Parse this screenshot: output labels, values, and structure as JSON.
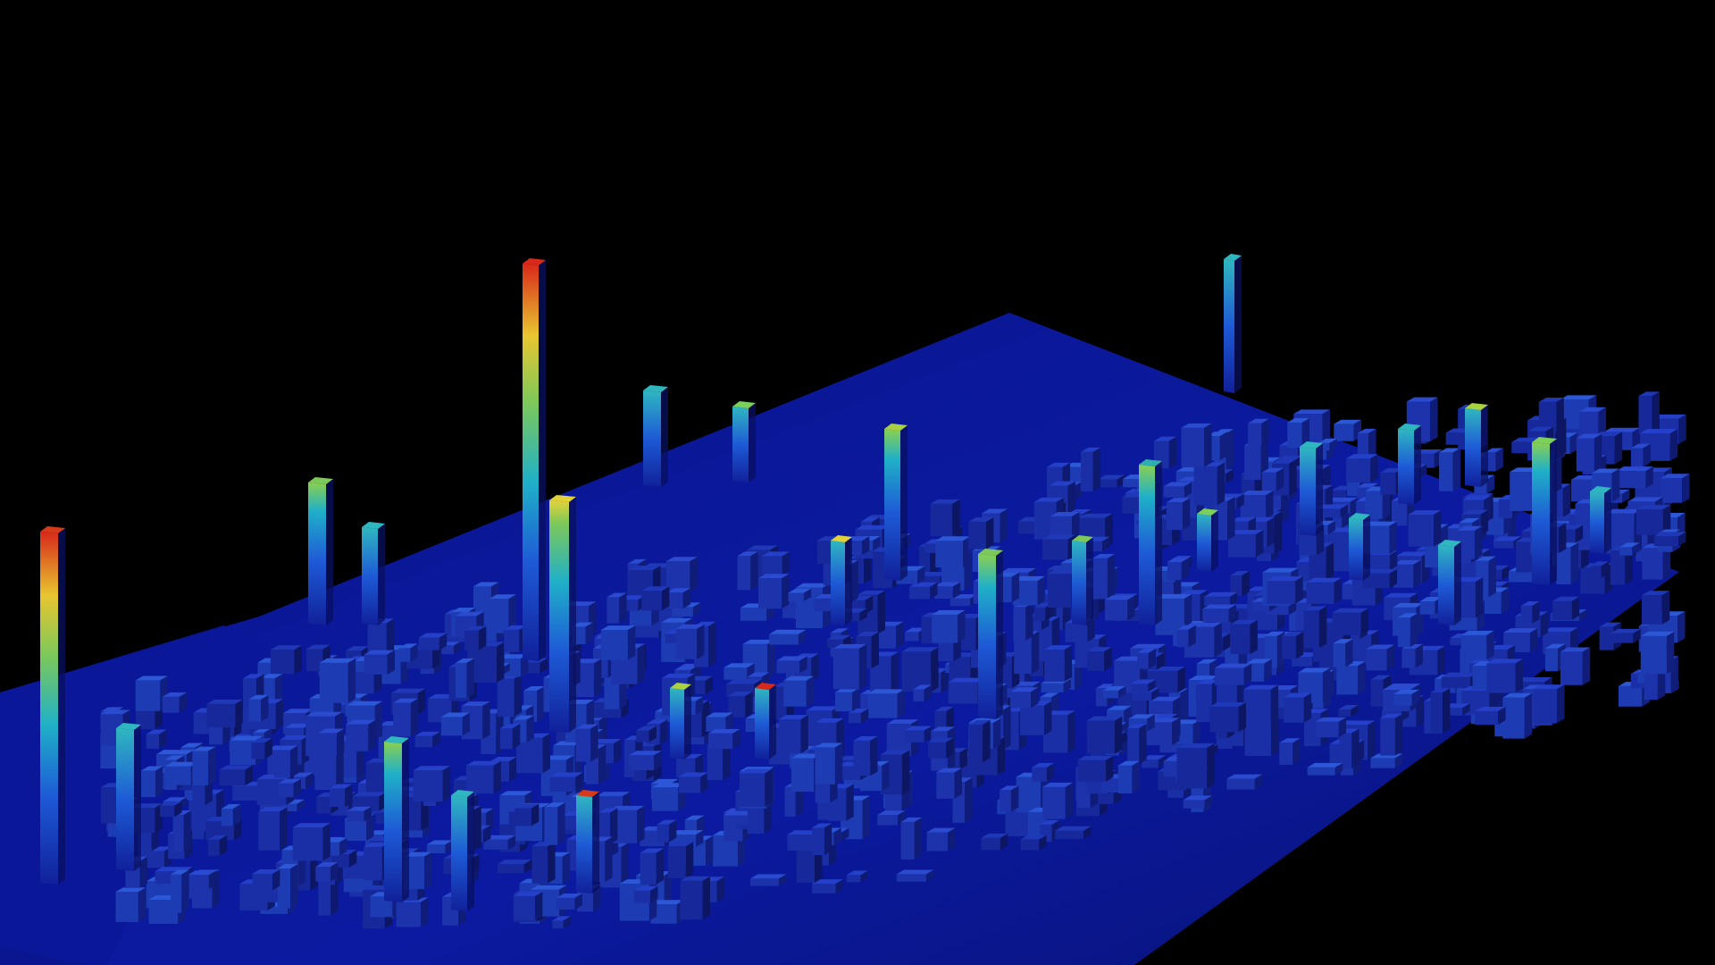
{
  "scene": {
    "description_tag": "3d-height-map-render",
    "colors": {
      "background": "#000000",
      "ground_plane": "#0b1aa0",
      "ground_plane_shadow": "#050c55",
      "ramp_low": "#10209a",
      "ramp_mid_low": "#1e5ad6",
      "ramp_mid": "#1fb0c8",
      "ramp_mid_high": "#7cc85a",
      "ramp_high": "#e8c630",
      "ramp_peak": "#d8281a"
    },
    "tall_bars": [
      {
        "id": "a",
        "level": 1.0,
        "peak_color": "#d63a1a"
      },
      {
        "id": "b",
        "level": 1.0,
        "peak_color": "#d8281a"
      },
      {
        "id": "c",
        "level": 0.72,
        "peak_color": "#e2d23a"
      },
      {
        "id": "d",
        "level": 0.55,
        "peak_color": "#7cc85a"
      },
      {
        "id": "e",
        "level": 0.5,
        "peak_color": "#2fb7c0"
      },
      {
        "id": "f",
        "level": 0.48,
        "peak_color": "#2fb7c0"
      },
      {
        "id": "g",
        "level": 0.48,
        "peak_color": "#2fb7c0"
      },
      {
        "id": "h",
        "level": 0.55,
        "peak_color": "#7ccf5a"
      },
      {
        "id": "i",
        "level": 0.55,
        "peak_color": "#a8d240"
      },
      {
        "id": "j",
        "level": 0.5,
        "peak_color": "#7cc85a"
      },
      {
        "id": "k",
        "level": 0.62,
        "peak_color": "#2fb0b0"
      },
      {
        "id": "l",
        "level": 0.45,
        "peak_color": "#2fb7c0"
      },
      {
        "id": "m",
        "level": 0.45,
        "peak_color": "#2fb7c0"
      },
      {
        "id": "n",
        "level": 0.45,
        "peak_color": "#2fb7c0"
      },
      {
        "id": "o",
        "level": 0.55,
        "peak_color": "#a8d240"
      },
      {
        "id": "p",
        "level": 0.45,
        "peak_color": "#7ccf5a"
      },
      {
        "id": "q",
        "level": 0.45,
        "peak_color": "#2fb7c0"
      },
      {
        "id": "r",
        "level": 0.4,
        "peak_color": "#2fb7c0"
      }
    ]
  }
}
